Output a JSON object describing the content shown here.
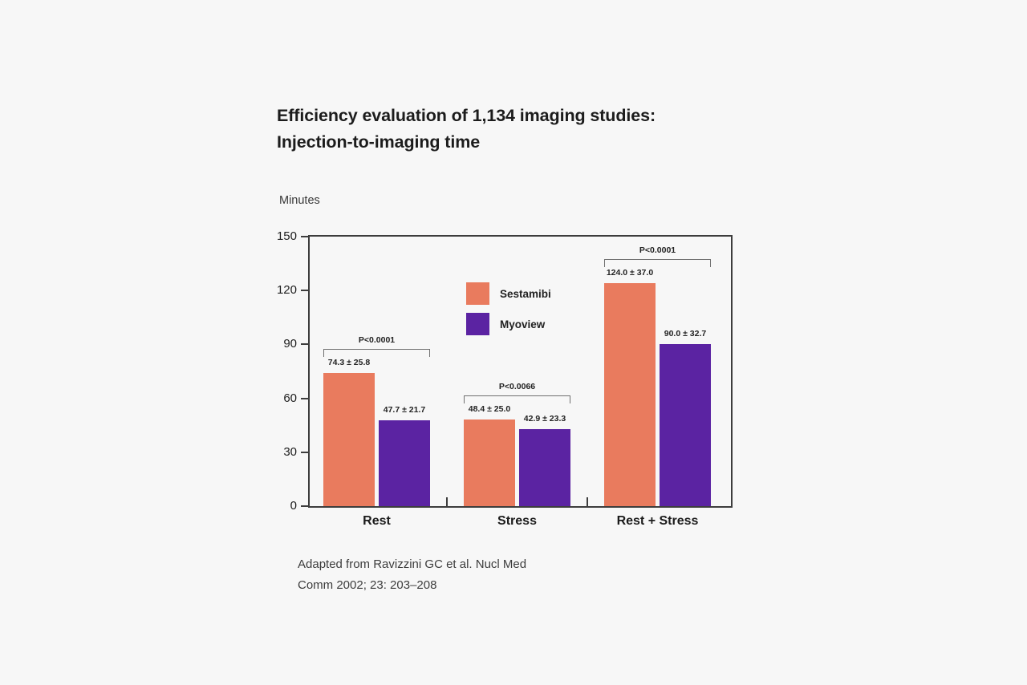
{
  "colors": {
    "background": "#f7f7f7",
    "axis": "#3d3d3d",
    "bracket": "#707070",
    "sestamibi": "#E97B5E",
    "myoview": "#5B23A2"
  },
  "header": {
    "title_line1": "Efficiency evaluation of 1,134 imaging studies:",
    "title_line2": "Injection-to-imaging time"
  },
  "axis": {
    "unit_label": "Minutes"
  },
  "footer": {
    "citation_line1": "Adapted from Ravizzini GC et al. Nucl Med",
    "citation_line2": "Comm 2002; 23: 203–208"
  },
  "chart_data": {
    "type": "bar",
    "title": "Efficiency evaluation of 1,134 imaging studies: Injection-to-imaging time",
    "ylabel": "Minutes",
    "ylim": [
      0,
      150
    ],
    "yticks": [
      0,
      30,
      60,
      90,
      120,
      150
    ],
    "grid": false,
    "legend_position": "inside-top-center",
    "categories": [
      "Rest",
      "Stress",
      "Rest + Stress"
    ],
    "series": [
      {
        "name": "Sestamibi",
        "color": "#E97B5E",
        "values": [
          74.3,
          48.4,
          124.0
        ],
        "sd": [
          25.8,
          25.0,
          37.0
        ],
        "labels": [
          "74.3 ± 25.8",
          "48.4 ± 25.0",
          "124.0 ± 37.0"
        ]
      },
      {
        "name": "Myoview",
        "color": "#5B23A2",
        "values": [
          47.7,
          42.9,
          90.0
        ],
        "sd": [
          21.7,
          23.3,
          32.7
        ],
        "labels": [
          "47.7 ± 21.7",
          "42.9 ± 23.3",
          "90.0 ± 32.7"
        ]
      }
    ],
    "p_values": [
      "P<0.0001",
      "P<0.0066",
      "P<0.0001"
    ]
  }
}
